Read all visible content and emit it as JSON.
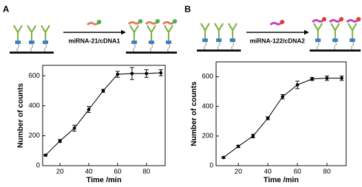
{
  "chart_data": [
    {
      "type": "line",
      "panel_label": "A",
      "scheme_label": "miRNA-21/cDNA1",
      "x_label": "Time /min",
      "y_label": "Number of counts",
      "x": [
        10,
        20,
        30,
        40,
        50,
        60,
        70,
        80,
        90
      ],
      "series": [
        {
          "color": "#000000",
          "values": [
            70,
            165,
            250,
            375,
            500,
            610,
            615,
            615,
            620
          ],
          "errors": [
            5,
            10,
            20,
            20,
            10,
            20,
            40,
            25,
            20
          ]
        }
      ],
      "xlim": [
        8,
        93
      ],
      "ylim": [
        0,
        670
      ],
      "xticks": [
        20,
        40,
        60,
        80
      ],
      "yticks": [
        0,
        200,
        400,
        600
      ]
    },
    {
      "type": "line",
      "panel_label": "B",
      "scheme_label": "miRNA-122/cDNA2",
      "x_label": "Time /min",
      "y_label": "Number of counts",
      "x": [
        10,
        20,
        30,
        40,
        50,
        60,
        70,
        80,
        90
      ],
      "series": [
        {
          "color": "#000000",
          "values": [
            55,
            130,
            200,
            320,
            465,
            545,
            585,
            590,
            590
          ],
          "errors": [
            5,
            8,
            12,
            10,
            15,
            25,
            10,
            15,
            15
          ]
        }
      ],
      "xlim": [
        5,
        93
      ],
      "ylim": [
        0,
        700
      ],
      "xticks": [
        20,
        40,
        60,
        80
      ],
      "yticks": [
        0,
        200,
        400,
        600
      ]
    }
  ]
}
